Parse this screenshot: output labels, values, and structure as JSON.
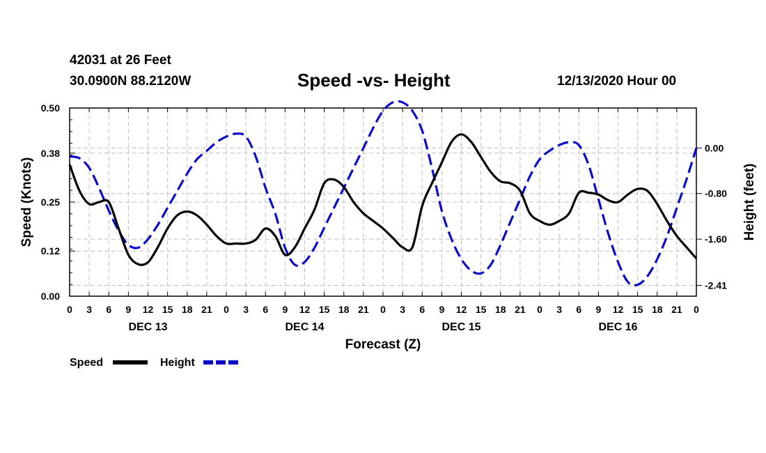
{
  "header": {
    "station": "42031 at 26 Feet",
    "coords": "30.0900N 88.2120W",
    "title": "Speed -vs- Height",
    "date": "12/13/2020 Hour 00"
  },
  "colors": {
    "speed": "#000000",
    "height": "#0a0ac8",
    "grid": "#bdbdbd"
  },
  "chart_data": {
    "type": "line",
    "title": "Speed -vs- Height",
    "xlabel": "Forecast (Z)",
    "ylabel": "Speed (Knots)",
    "y2label": "Height (feet)",
    "xlim": [
      0,
      96
    ],
    "ylim": [
      0,
      0.5
    ],
    "y2lim": [
      -2.6,
      0.7
    ],
    "x_ticks": [
      0,
      3,
      6,
      9,
      12,
      15,
      18,
      21,
      24,
      27,
      30,
      33,
      36,
      39,
      42,
      45,
      48,
      51,
      54,
      57,
      60,
      63,
      66,
      69,
      72,
      75,
      78,
      81,
      84,
      87,
      90,
      93,
      96
    ],
    "x_tick_labels": [
      "0",
      "3",
      "6",
      "9",
      "12",
      "15",
      "18",
      "21",
      "0",
      "3",
      "6",
      "9",
      "12",
      "15",
      "18",
      "21",
      "0",
      "3",
      "6",
      "9",
      "12",
      "15",
      "18",
      "21",
      "0",
      "3",
      "6",
      "9",
      "12",
      "15",
      "18",
      "21",
      "0"
    ],
    "day_labels": [
      {
        "x": 12,
        "label": "DEC 13"
      },
      {
        "x": 36,
        "label": "DEC 14"
      },
      {
        "x": 60,
        "label": "DEC 15"
      },
      {
        "x": 84,
        "label": "DEC 16"
      }
    ],
    "y_ticks": [
      0.0,
      0.12,
      0.25,
      0.38,
      0.5
    ],
    "y_tick_labels": [
      "0.00",
      "0.12",
      "0.25",
      "0.38",
      "0.50"
    ],
    "y2_ticks": [
      0.0,
      -0.8,
      -1.6,
      -2.41
    ],
    "y2_tick_labels": [
      "0.00",
      "-0.80",
      "-1.60",
      "-2.41"
    ],
    "legend": [
      {
        "name": "Speed",
        "style": "solid"
      },
      {
        "name": "Height",
        "style": "dashed"
      }
    ],
    "series": [
      {
        "name": "Speed",
        "axis": "left",
        "style": "solid",
        "x": [
          0,
          1.5,
          3,
          4.5,
          6,
          7.5,
          9,
          10.5,
          12,
          13.5,
          15,
          16.5,
          18,
          19.5,
          21,
          22.5,
          24,
          25.5,
          27,
          28.5,
          30,
          31.5,
          33,
          34.5,
          36,
          37.5,
          39,
          40.5,
          42,
          43.5,
          45,
          46.5,
          48,
          49.5,
          51,
          52.5,
          54,
          55.5,
          57,
          58.5,
          60,
          61.5,
          63,
          64.5,
          66,
          67.5,
          69,
          70.5,
          72,
          73.5,
          75,
          76.5,
          78,
          79.5,
          81,
          82.5,
          84,
          85.5,
          87,
          88.5,
          90,
          91.5,
          93,
          94.5,
          96
        ],
        "values": [
          0.35,
          0.28,
          0.245,
          0.25,
          0.25,
          0.18,
          0.11,
          0.085,
          0.09,
          0.13,
          0.18,
          0.215,
          0.225,
          0.215,
          0.19,
          0.16,
          0.14,
          0.14,
          0.14,
          0.15,
          0.18,
          0.16,
          0.11,
          0.13,
          0.18,
          0.23,
          0.3,
          0.31,
          0.29,
          0.25,
          0.22,
          0.2,
          0.18,
          0.155,
          0.13,
          0.13,
          0.24,
          0.3,
          0.355,
          0.41,
          0.43,
          0.41,
          0.37,
          0.33,
          0.305,
          0.3,
          0.28,
          0.22,
          0.2,
          0.19,
          0.2,
          0.22,
          0.275,
          0.275,
          0.27,
          0.255,
          0.25,
          0.27,
          0.285,
          0.28,
          0.245,
          0.2,
          0.16,
          0.13,
          0.1
        ]
      },
      {
        "name": "Height",
        "axis": "right",
        "style": "dashed",
        "x": [
          0,
          1.5,
          3,
          4.5,
          6,
          7.5,
          9,
          10.5,
          12,
          13.5,
          15,
          16.5,
          18,
          19.5,
          21,
          22.5,
          24,
          25.5,
          27,
          28.5,
          30,
          31.5,
          33,
          34.5,
          36,
          37.5,
          39,
          40.5,
          42,
          43.5,
          45,
          46.5,
          48,
          49.5,
          51,
          52.5,
          54,
          55.5,
          57,
          58.5,
          60,
          61.5,
          63,
          64.5,
          66,
          67.5,
          69,
          70.5,
          72,
          73.5,
          75,
          76.5,
          78,
          79.5,
          81,
          82.5,
          84,
          85.5,
          87,
          88.5,
          90,
          91.5,
          93,
          94.5,
          96
        ],
        "values": [
          -0.15,
          -0.18,
          -0.35,
          -0.7,
          -1.1,
          -1.45,
          -1.7,
          -1.75,
          -1.6,
          -1.35,
          -1.05,
          -0.75,
          -0.45,
          -0.2,
          -0.05,
          0.1,
          0.2,
          0.25,
          0.2,
          -0.15,
          -0.7,
          -1.15,
          -1.75,
          -2.05,
          -2.0,
          -1.75,
          -1.4,
          -1.05,
          -0.7,
          -0.35,
          0.0,
          0.35,
          0.65,
          0.8,
          0.8,
          0.65,
          0.3,
          -0.35,
          -1.1,
          -1.6,
          -1.95,
          -2.15,
          -2.2,
          -2.05,
          -1.7,
          -1.3,
          -0.9,
          -0.5,
          -0.2,
          -0.05,
          0.05,
          0.1,
          0.05,
          -0.3,
          -0.9,
          -1.5,
          -2.0,
          -2.35,
          -2.4,
          -2.25,
          -1.95,
          -1.55,
          -1.05,
          -0.55,
          -0.0
        ]
      }
    ]
  }
}
